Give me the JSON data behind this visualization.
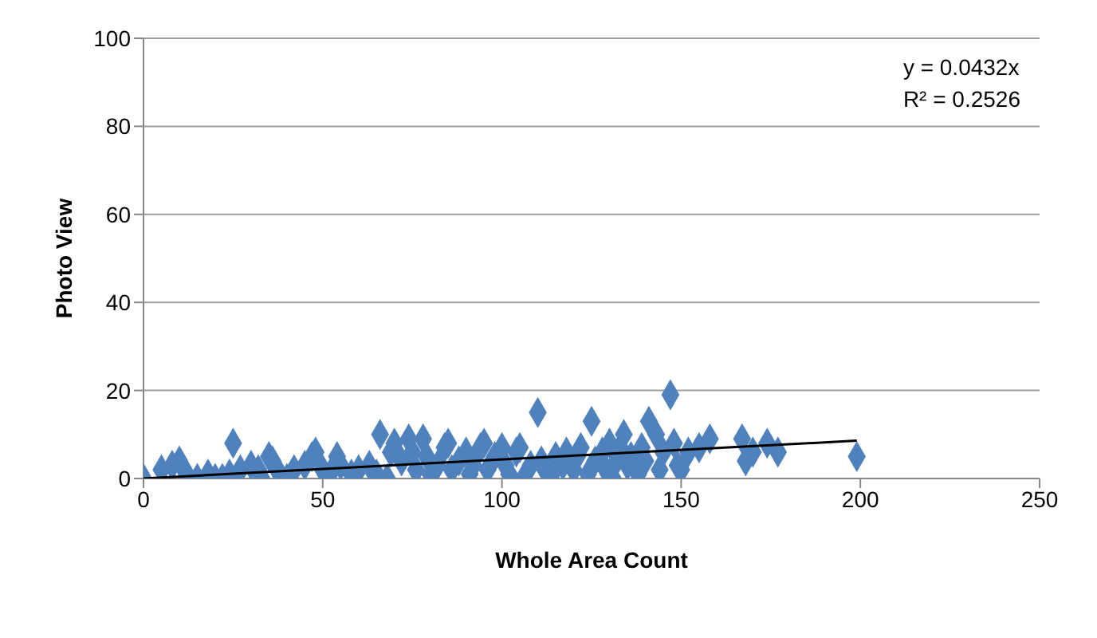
{
  "chart_data": {
    "type": "scatter",
    "xlabel": "Whole Area Count",
    "ylabel": "Photo View",
    "annotations": [
      "y = 0.0432x",
      "R² = 0.2526"
    ],
    "xlim": [
      0,
      250
    ],
    "xticks": [
      0,
      50,
      100,
      150,
      200,
      250
    ],
    "ylim": [
      0,
      100
    ],
    "yticks": [
      0,
      20,
      40,
      60,
      80,
      100
    ],
    "grid": "y",
    "marker": "diamond",
    "series": [
      {
        "type": "scatter",
        "color": "#4f81bd",
        "x": [
          0,
          5,
          8,
          10,
          12,
          15,
          18,
          20,
          22,
          24,
          25,
          27,
          30,
          32,
          33,
          35,
          36,
          38,
          40,
          42,
          45,
          47,
          48,
          50,
          52,
          54,
          55,
          58,
          60,
          63,
          65,
          66,
          68,
          69,
          70,
          72,
          74,
          75,
          76,
          78,
          79,
          80,
          82,
          84,
          85,
          86,
          88,
          90,
          91,
          92,
          94,
          95,
          96,
          98,
          100,
          101,
          102,
          104,
          105,
          106,
          108,
          110,
          111,
          112,
          114,
          115,
          117,
          118,
          120,
          121,
          122,
          124,
          125,
          126,
          128,
          129,
          130,
          131,
          132,
          133,
          134,
          135,
          136,
          138,
          139,
          140,
          141,
          143,
          144,
          145,
          147,
          148,
          149,
          150,
          152,
          155,
          158,
          167,
          168,
          170,
          174,
          177,
          199
        ],
        "values": [
          0,
          2,
          3,
          4,
          1,
          0,
          1,
          0,
          0,
          1,
          8,
          2,
          3,
          2,
          0,
          5,
          4,
          1,
          0,
          2,
          3,
          5,
          6,
          2,
          1,
          5,
          3,
          1,
          2,
          3,
          1,
          10,
          0,
          6,
          8,
          4,
          9,
          6,
          2,
          9,
          5,
          1,
          3,
          7,
          8,
          2,
          4,
          6,
          1,
          3,
          7,
          8,
          2,
          5,
          7,
          3,
          1,
          6,
          7,
          0,
          3,
          15,
          4,
          2,
          1,
          5,
          3,
          6,
          2,
          5,
          7,
          1,
          13,
          4,
          6,
          2,
          8,
          0,
          4,
          7,
          10,
          3,
          5,
          1,
          7,
          4,
          13,
          10,
          2,
          6,
          19,
          8,
          3,
          2,
          6,
          7,
          9,
          9,
          4,
          6,
          8,
          6,
          5
        ]
      },
      {
        "type": "line",
        "color": "#000000",
        "marker": "none",
        "line_style": "solid",
        "x": [
          0,
          199
        ],
        "values": [
          0,
          8.6
        ]
      }
    ]
  }
}
